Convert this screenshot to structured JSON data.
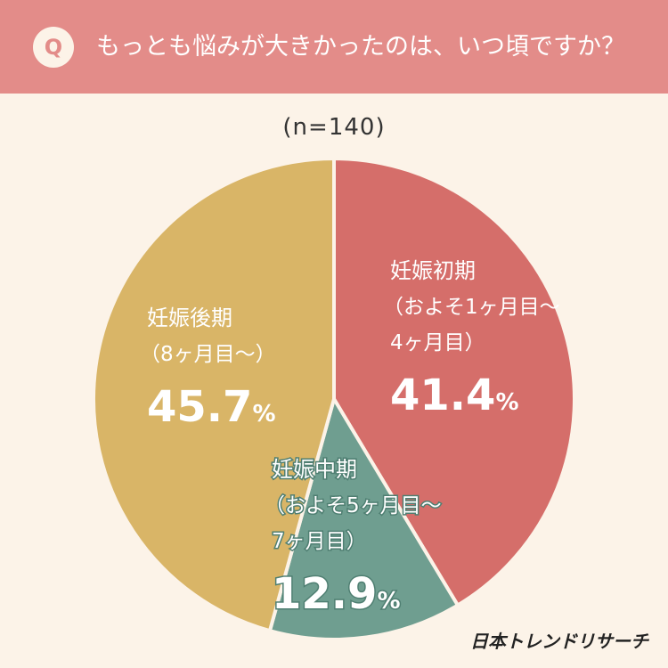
{
  "header": {
    "badge": "Q",
    "question": "もっとも悩みが大きかったのは、いつ頃ですか？"
  },
  "sample_size": "(n=140)",
  "brand": "日本トレンドリサーチ",
  "chart_data": {
    "type": "pie",
    "title": "もっとも悩みが大きかったのは、いつ頃ですか？",
    "sample": "(n=140)",
    "start_angle_deg": 0,
    "direction": "clockwise",
    "slices": [
      {
        "name": "妊娠初期",
        "sub": [
          "（およそ1ヶ月目〜",
          "4ヶ月目）"
        ],
        "value": 41.4,
        "label": "41.4%",
        "color": "#d56e6a"
      },
      {
        "name": "妊娠中期",
        "sub": [
          "（およそ5ヶ月目〜",
          "7ヶ月目）"
        ],
        "value": 12.9,
        "label": "12.9%",
        "color": "#6f9e90"
      },
      {
        "name": "妊娠後期",
        "sub": [
          "（8ヶ月目〜）"
        ],
        "value": 45.7,
        "label": "45.7%",
        "color": "#d9b567"
      }
    ]
  }
}
